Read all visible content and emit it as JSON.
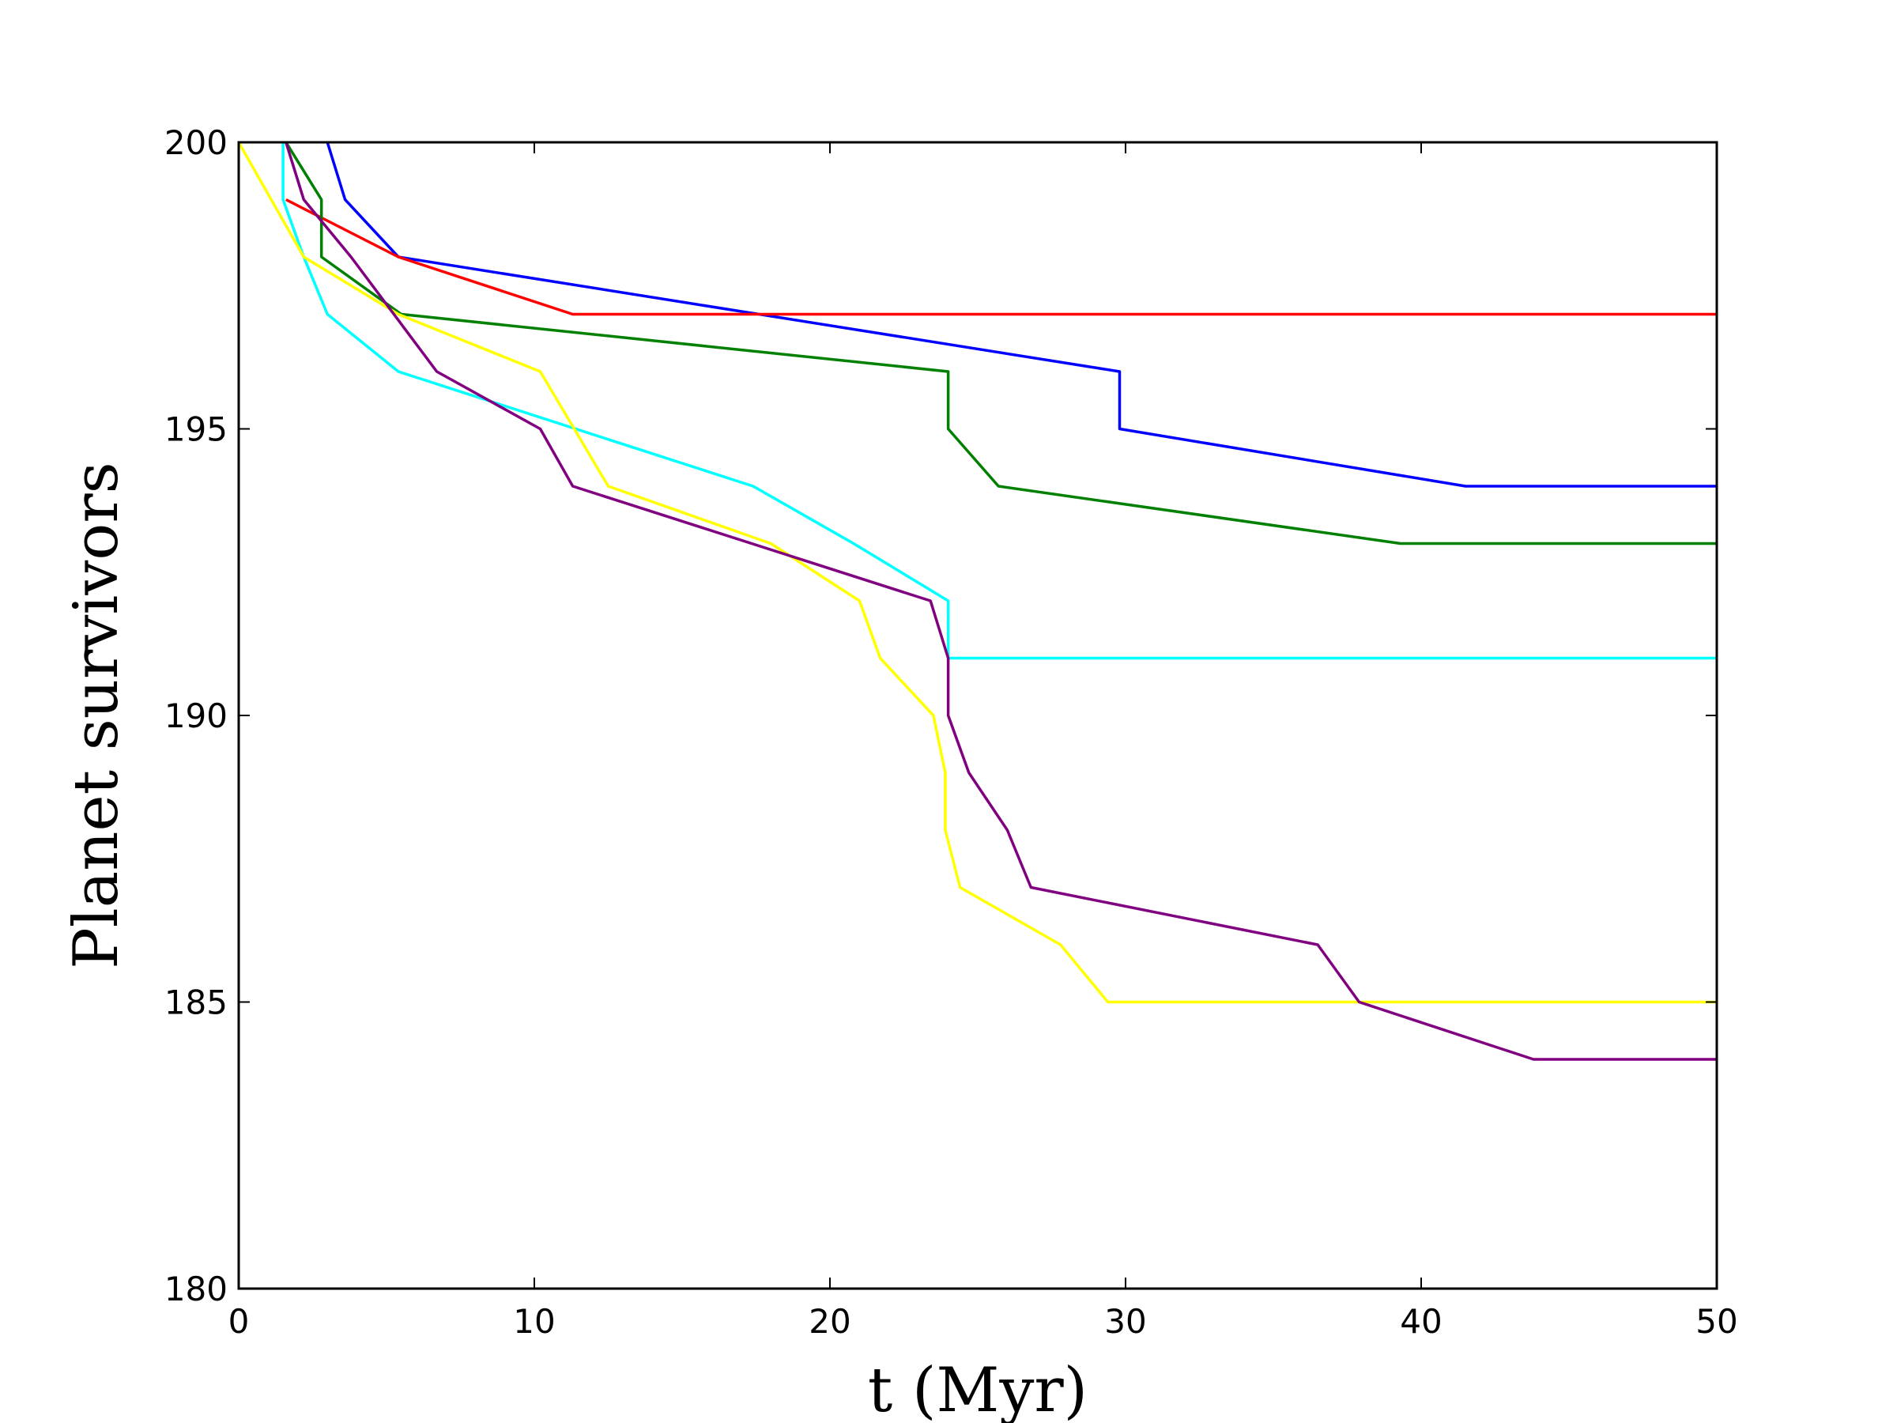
{
  "chart_data": {
    "type": "line",
    "xlabel": "t (Myr)",
    "ylabel": "Planet survivors",
    "xlim": [
      0,
      50
    ],
    "ylim": [
      180,
      200
    ],
    "xticks": [
      0,
      10,
      20,
      30,
      40,
      50
    ],
    "yticks": [
      180,
      185,
      190,
      195,
      200
    ],
    "xtick_labels": [
      "0",
      "10",
      "20",
      "30",
      "40",
      "50"
    ],
    "ytick_labels": [
      "180",
      "185",
      "190",
      "195",
      "200"
    ],
    "grid": false,
    "legend": "none",
    "series": [
      {
        "color": "#0000ff",
        "points": [
          [
            3.0,
            200
          ],
          [
            3.6,
            199
          ],
          [
            5.4,
            198
          ],
          [
            29.8,
            196
          ],
          [
            29.8,
            195
          ],
          [
            41.5,
            194
          ],
          [
            50,
            194
          ]
        ]
      },
      {
        "color": "#ff0000",
        "points": [
          [
            1.6,
            199
          ],
          [
            5.4,
            198
          ],
          [
            11.3,
            197
          ],
          [
            50,
            197
          ]
        ]
      },
      {
        "color": "#008000",
        "points": [
          [
            1.6,
            200
          ],
          [
            2.8,
            199
          ],
          [
            2.8,
            198
          ],
          [
            5.5,
            197
          ],
          [
            24.0,
            196
          ],
          [
            24.0,
            195
          ],
          [
            25.7,
            194
          ],
          [
            39.3,
            193
          ],
          [
            50,
            193
          ]
        ]
      },
      {
        "color": "#00ffff",
        "points": [
          [
            1.5,
            200
          ],
          [
            1.5,
            199
          ],
          [
            2.2,
            198
          ],
          [
            3.0,
            197
          ],
          [
            5.4,
            196
          ],
          [
            17.4,
            194
          ],
          [
            20.8,
            193
          ],
          [
            24.0,
            192
          ],
          [
            24.0,
            191
          ],
          [
            50,
            191
          ]
        ]
      },
      {
        "color": "#ffff00",
        "points": [
          [
            0,
            200
          ],
          [
            2.2,
            198
          ],
          [
            5.4,
            197
          ],
          [
            10.2,
            196
          ],
          [
            12.5,
            194
          ],
          [
            18.0,
            193
          ],
          [
            21.0,
            192
          ],
          [
            21.7,
            191
          ],
          [
            23.5,
            190
          ],
          [
            23.9,
            189
          ],
          [
            23.9,
            188
          ],
          [
            24.4,
            187
          ],
          [
            27.8,
            186
          ],
          [
            29.4,
            185
          ],
          [
            50,
            185
          ]
        ]
      },
      {
        "color": "#800080",
        "points": [
          [
            1.6,
            200
          ],
          [
            2.2,
            199
          ],
          [
            3.8,
            198
          ],
          [
            6.7,
            196
          ],
          [
            10.2,
            195
          ],
          [
            11.3,
            194
          ],
          [
            23.4,
            192
          ],
          [
            24.0,
            191
          ],
          [
            24.0,
            190
          ],
          [
            24.7,
            189
          ],
          [
            26.0,
            188
          ],
          [
            26.8,
            187
          ],
          [
            36.5,
            186
          ],
          [
            37.9,
            185
          ],
          [
            43.8,
            184
          ],
          [
            50,
            184
          ]
        ]
      }
    ]
  }
}
